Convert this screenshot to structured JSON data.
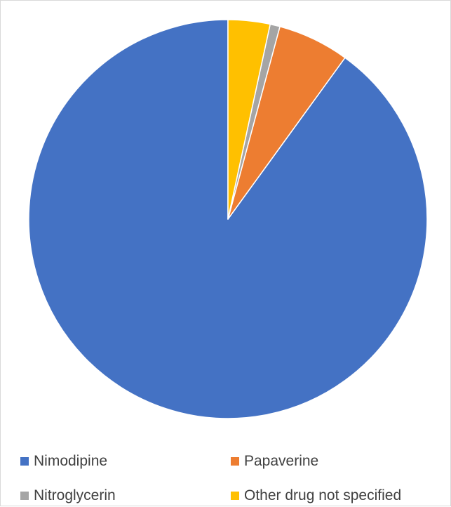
{
  "chart_data": {
    "type": "pie",
    "categories": [
      "Nimodipine",
      "Papaverine",
      "Nitroglycerin",
      "Other drug not specified"
    ],
    "values": [
      90,
      5.8,
      0.8,
      3.4
    ],
    "unit": "",
    "colors": [
      "#4472C4",
      "#ED7D31",
      "#A5A5A5",
      "#FFC000"
    ],
    "start_angle_deg": 0,
    "direction": "counterclockwise",
    "legend_position": "bottom",
    "slice_border_color": "#ffffff"
  },
  "legend": {
    "items": [
      {
        "label": "Nimodipine",
        "color": "#4472C4"
      },
      {
        "label": "Papaverine",
        "color": "#ED7D31"
      },
      {
        "label": "Nitroglycerin",
        "color": "#A5A5A5"
      },
      {
        "label": "Other drug not specified",
        "color": "#FFC000"
      }
    ]
  }
}
